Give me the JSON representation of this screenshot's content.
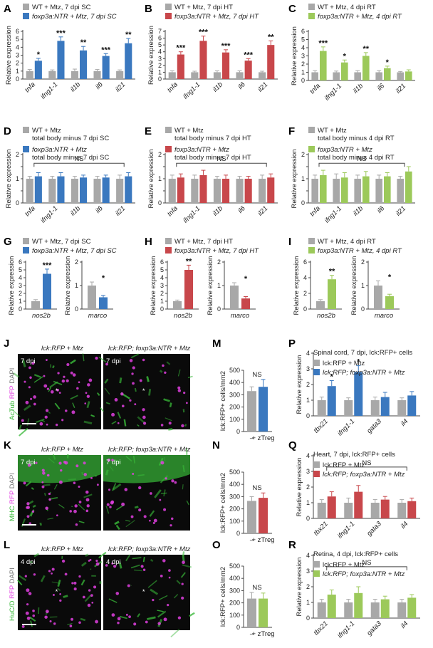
{
  "colors": {
    "gray": "#a8a8a8",
    "blue": "#3a78bf",
    "red": "#c8474b",
    "green": "#9cc95a",
    "magenta": "#e040e0",
    "stain": "#38b838"
  },
  "panel_letters": [
    "A",
    "B",
    "C",
    "D",
    "E",
    "F",
    "G",
    "H",
    "I",
    "J",
    "K",
    "L",
    "M",
    "N",
    "O",
    "P",
    "Q",
    "R"
  ],
  "micrographs": [
    {
      "id": "J",
      "left_label": "lck:RFP + Mtz",
      "right_label": "lck:RFP; foxp3a:NTR + Mtz",
      "dpi": "7 dpi",
      "stain": "AcTub",
      "rfp": "RFP",
      "dapi": "DAPI"
    },
    {
      "id": "K",
      "left_label": "lck:RFP + Mtz",
      "right_label": "lck:RFP; foxp3a:NTR + Mtz",
      "dpi": "7 dpi",
      "stain": "MHC",
      "rfp": "RFP",
      "dapi": "DAPI"
    },
    {
      "id": "L",
      "left_label": "lck:RFP + Mtz",
      "right_label": "lck:RFP; foxp3a:NTR + Mtz",
      "dpi": "4 dpi",
      "stain": "HuC/D",
      "rfp": "RFP",
      "dapi": "DAPI"
    }
  ],
  "chart_data": [
    {
      "panel": "A",
      "type": "bar",
      "ylabel": "Relative expression",
      "ylim": [
        0,
        6
      ],
      "yticks": [
        0,
        1,
        2,
        3,
        4,
        5,
        6
      ],
      "categories": [
        "tnfa",
        "ifng1-1",
        "il1b",
        "il6",
        "il21"
      ],
      "legend": [
        "WT + Mtz, 7 dpi SC",
        "foxp3a:NTR + Mtz, 7 dpi SC"
      ],
      "series": [
        {
          "name": "WT + Mtz, 7 dpi SC",
          "color": "gray",
          "values": [
            1,
            1,
            1,
            1,
            1
          ],
          "err": [
            0.2,
            0.15,
            0.25,
            0.2,
            0.15
          ]
        },
        {
          "name": "foxp3a:NTR + Mtz, 7 dpi SC",
          "color": "blue",
          "values": [
            2.3,
            4.8,
            3.6,
            2.9,
            4.5
          ],
          "err": [
            0.3,
            0.5,
            0.5,
            0.3,
            0.6
          ]
        }
      ],
      "significance": [
        "*",
        "***",
        "**",
        "***",
        "**"
      ]
    },
    {
      "panel": "B",
      "type": "bar",
      "ylabel": "Relative expression",
      "ylim": [
        0,
        7
      ],
      "yticks": [
        0,
        1,
        2,
        3,
        4,
        5,
        6,
        7
      ],
      "categories": [
        "tnfa",
        "ifng1-1",
        "il1b",
        "il6",
        "il21"
      ],
      "legend": [
        "WT + Mtz, 7 dpi HT",
        "foxp3a:NTR + Mtz, 7 dpi HT"
      ],
      "series": [
        {
          "name": "WT + Mtz, 7 dpi HT",
          "color": "gray",
          "values": [
            1,
            1,
            1,
            1,
            1
          ],
          "err": [
            0.2,
            0.15,
            0.2,
            0.2,
            0.15
          ]
        },
        {
          "name": "foxp3a:NTR + Mtz, 7 dpi HT",
          "color": "red",
          "values": [
            3.6,
            5.6,
            3.9,
            2.7,
            5.0
          ],
          "err": [
            0.4,
            0.7,
            0.4,
            0.3,
            0.6
          ]
        }
      ],
      "significance": [
        "***",
        "***",
        "***",
        "***",
        "**"
      ]
    },
    {
      "panel": "C",
      "type": "bar",
      "ylabel": "Relative expression",
      "ylim": [
        0,
        6
      ],
      "yticks": [
        0,
        1,
        2,
        3,
        4,
        5,
        6
      ],
      "categories": [
        "tnfa",
        "ifng1-1",
        "il1b",
        "il6",
        "il21"
      ],
      "legend": [
        "WT + Mtz, 4 dpi RT",
        "foxp3a:NTR + Mtz, 4 dpi RT"
      ],
      "series": [
        {
          "name": "WT + Mtz, 4 dpi RT",
          "color": "gray",
          "values": [
            1,
            1,
            1,
            1,
            1
          ],
          "err": [
            0.2,
            0.15,
            0.2,
            0.2,
            0.1
          ]
        },
        {
          "name": "foxp3a:NTR + Mtz, 4 dpi RT",
          "color": "green",
          "values": [
            3.6,
            2.2,
            3.0,
            1.5,
            1.1
          ],
          "err": [
            0.5,
            0.3,
            0.4,
            0.25,
            0.2
          ]
        }
      ],
      "significance": [
        "***",
        "*",
        "**",
        "*",
        ""
      ]
    },
    {
      "panel": "D",
      "type": "bar",
      "ylabel": "Relative expression",
      "ylim": [
        0,
        2
      ],
      "yticks": [
        0,
        0.5,
        1,
        1.5,
        2
      ],
      "ytick_labels": [
        "0",
        "",
        "1",
        "",
        "2"
      ],
      "categories": [
        "tnfa",
        "ifng1-1",
        "il1b",
        "il6",
        "il21"
      ],
      "legend": [
        "WT + Mtz",
        "total body minus 7 dpi SC",
        "foxp3a:NTR + Mtz",
        "total body minus 7 dpi SC"
      ],
      "series": [
        {
          "name": "WT + Mtz",
          "color": "gray",
          "values": [
            1,
            1,
            1,
            1,
            1
          ],
          "err": [
            0.1,
            0.1,
            0.1,
            0.1,
            0.15
          ]
        },
        {
          "name": "foxp3a:NTR + Mtz",
          "color": "blue",
          "values": [
            1.1,
            1.1,
            1.05,
            1.05,
            1.1
          ],
          "err": [
            0.15,
            0.15,
            0.1,
            0.1,
            0.15
          ]
        }
      ],
      "bracket": "NS"
    },
    {
      "panel": "E",
      "type": "bar",
      "ylabel": "Relative expression",
      "ylim": [
        0,
        2
      ],
      "yticks": [
        0,
        0.5,
        1,
        1.5,
        2
      ],
      "ytick_labels": [
        "0",
        "",
        "1",
        "",
        "2"
      ],
      "categories": [
        "tnfa",
        "ifng1-1",
        "il1b",
        "il6",
        "il21"
      ],
      "legend": [
        "WT + Mtz",
        "total body minus 7 dpi HT",
        "foxp3a:NTR + Mtz",
        "total body minus 7 dpi HT"
      ],
      "series": [
        {
          "name": "WT + Mtz",
          "color": "gray",
          "values": [
            1,
            1,
            1,
            1,
            1
          ],
          "err": [
            0.15,
            0.15,
            0.1,
            0.1,
            0.15
          ]
        },
        {
          "name": "foxp3a:NTR + Mtz",
          "color": "red",
          "values": [
            1.05,
            1.15,
            1.0,
            1.0,
            1.05
          ],
          "err": [
            0.15,
            0.2,
            0.15,
            0.1,
            0.15
          ]
        }
      ],
      "bracket": "NS"
    },
    {
      "panel": "F",
      "type": "bar",
      "ylabel": "Relative expression",
      "ylim": [
        0,
        2
      ],
      "yticks": [
        0,
        0.5,
        1,
        1.5,
        2
      ],
      "ytick_labels": [
        "0",
        "",
        "1",
        "",
        "2"
      ],
      "categories": [
        "tnfa",
        "ifng1-1",
        "il1b",
        "il6",
        "il21"
      ],
      "legend": [
        "WT + Mtz",
        "total body minus 4 dpi RT",
        "foxp3a:NTR + Mtz",
        "total body minus 4 dpi RT"
      ],
      "series": [
        {
          "name": "WT + Mtz",
          "color": "gray",
          "values": [
            1,
            1,
            1,
            1,
            1
          ],
          "err": [
            0.15,
            0.2,
            0.15,
            0.15,
            0.1
          ]
        },
        {
          "name": "foxp3a:NTR + Mtz",
          "color": "green",
          "values": [
            1.15,
            1.05,
            1.1,
            1.1,
            1.3
          ],
          "err": [
            0.2,
            0.2,
            0.2,
            0.15,
            0.2
          ]
        }
      ],
      "bracket": "NS"
    },
    {
      "panel": "G",
      "type": "bar",
      "ylabel": "Relative expression",
      "ylim": [
        0,
        6
      ],
      "yticks": [
        0,
        1,
        2,
        3,
        4,
        5,
        6
      ],
      "categories": [
        "nos2b"
      ],
      "legend": [
        "WT + Mtz, 7 dpi SC",
        "foxp3a:NTR + Mtz, 7 dpi SC"
      ],
      "series": [
        {
          "name": "WT + Mtz, 7 dpi SC",
          "color": "gray",
          "values": [
            1
          ],
          "err": [
            0.2
          ]
        },
        {
          "name": "foxp3a:NTR + Mtz, 7 dpi SC",
          "color": "blue",
          "values": [
            4.5
          ],
          "err": [
            0.6
          ]
        }
      ],
      "significance": [
        "***"
      ]
    },
    {
      "panel": "G2",
      "type": "bar",
      "ylabel": "Relative expression",
      "ylim": [
        0,
        2
      ],
      "yticks": [
        0,
        1,
        2
      ],
      "categories": [
        "marco"
      ],
      "series": [
        {
          "name": "WT + Mtz, 7 dpi SC",
          "color": "gray",
          "values": [
            1.0
          ],
          "err": [
            0.15
          ]
        },
        {
          "name": "foxp3a:NTR + Mtz, 7 dpi SC",
          "color": "blue",
          "values": [
            0.5
          ],
          "err": [
            0.08
          ]
        }
      ],
      "significance": [
        "*"
      ]
    },
    {
      "panel": "H",
      "type": "bar",
      "ylabel": "Relative expression",
      "ylim": [
        0,
        6
      ],
      "yticks": [
        0,
        1,
        2,
        3,
        4,
        5,
        6
      ],
      "categories": [
        "nos2b"
      ],
      "legend": [
        "WT + Mtz, 7 dpi HT",
        "foxp3a:NTR + Mtz, 7 dpi HT"
      ],
      "series": [
        {
          "name": "WT + Mtz, 7 dpi HT",
          "color": "gray",
          "values": [
            1
          ],
          "err": [
            0.15
          ]
        },
        {
          "name": "foxp3a:NTR + Mtz, 7 dpi HT",
          "color": "red",
          "values": [
            5.0
          ],
          "err": [
            0.6
          ]
        }
      ],
      "significance": [
        "**"
      ]
    },
    {
      "panel": "H2",
      "type": "bar",
      "ylabel": "Relative expression",
      "ylim": [
        0,
        2
      ],
      "yticks": [
        0,
        1,
        2
      ],
      "categories": [
        "marco"
      ],
      "series": [
        {
          "name": "WT + Mtz, 7 dpi HT",
          "color": "gray",
          "values": [
            1.0
          ],
          "err": [
            0.12
          ]
        },
        {
          "name": "foxp3a:NTR + Mtz, 7 dpi HT",
          "color": "red",
          "values": [
            0.45
          ],
          "err": [
            0.08
          ]
        }
      ],
      "significance": [
        "*"
      ]
    },
    {
      "panel": "I",
      "type": "bar",
      "ylabel": "Relative expression",
      "ylim": [
        0,
        6
      ],
      "yticks": [
        0,
        2,
        4,
        6
      ],
      "categories": [
        "nos2b"
      ],
      "legend": [
        "WT + Mtz, 4 dpi RT",
        "foxp3a:NTR + Mtz, 4 dpi RT"
      ],
      "series": [
        {
          "name": "WT + Mtz, 4 dpi RT",
          "color": "gray",
          "values": [
            1
          ],
          "err": [
            0.2
          ]
        },
        {
          "name": "foxp3a:NTR + Mtz, 4 dpi RT",
          "color": "green",
          "values": [
            3.8
          ],
          "err": [
            0.5
          ]
        }
      ],
      "significance": [
        "**"
      ]
    },
    {
      "panel": "I2",
      "type": "bar",
      "ylabel": "Relative expression",
      "ylim": [
        0,
        2
      ],
      "yticks": [
        0,
        1,
        2
      ],
      "categories": [
        "marco"
      ],
      "series": [
        {
          "name": "WT + Mtz, 4 dpi RT",
          "color": "gray",
          "values": [
            1.0
          ],
          "err": [
            0.2
          ]
        },
        {
          "name": "foxp3a:NTR + Mtz, 4 dpi RT",
          "color": "green",
          "values": [
            0.55
          ],
          "err": [
            0.08
          ]
        }
      ],
      "significance": [
        "*"
      ]
    },
    {
      "panel": "M",
      "type": "bar",
      "ylabel": "lck:RFP+ cells/mm2",
      "ylim": [
        0,
        500
      ],
      "yticks": [
        0,
        100,
        200,
        300,
        400,
        500
      ],
      "categories": [
        "–",
        "+ zTreg"
      ],
      "values": [
        330,
        365
      ],
      "err": [
        35,
        60
      ],
      "colors": [
        "gray",
        "blue"
      ],
      "bracket": "NS"
    },
    {
      "panel": "N",
      "type": "bar",
      "ylabel": "lck:RFP+ cells/mm2",
      "ylim": [
        0,
        500
      ],
      "yticks": [
        0,
        100,
        200,
        300,
        400,
        500
      ],
      "categories": [
        "–",
        "+ zTreg"
      ],
      "values": [
        265,
        290
      ],
      "err": [
        35,
        40
      ],
      "colors": [
        "gray",
        "red"
      ],
      "bracket": "NS"
    },
    {
      "panel": "O",
      "type": "bar",
      "ylabel": "lck:RFP+ cells/mm2",
      "ylim": [
        0,
        500
      ],
      "yticks": [
        0,
        100,
        200,
        300,
        400,
        500
      ],
      "categories": [
        "–",
        "+ zTreg"
      ],
      "values": [
        235,
        235
      ],
      "err": [
        50,
        45
      ],
      "colors": [
        "gray",
        "green"
      ],
      "bracket": "NS"
    },
    {
      "panel": "P",
      "type": "bar",
      "title": "Spinal cord, 7 dpi, lck:RFP+ cells",
      "ylabel": "Relative expression",
      "ylim": [
        0,
        4
      ],
      "yticks": [
        0,
        1,
        2,
        3,
        4
      ],
      "categories": [
        "tbx21",
        "ifng1-1",
        "gata3",
        "il4"
      ],
      "legend": [
        "lck:RFP + Mtz",
        "lck:RFP; foxp3a:NTR + Mtz"
      ],
      "series": [
        {
          "name": "lck:RFP + Mtz",
          "color": "gray",
          "values": [
            1,
            1,
            1,
            1
          ],
          "err": [
            0.2,
            0.15,
            0.2,
            0.15
          ]
        },
        {
          "name": "lck:RFP; foxp3a:NTR + Mtz",
          "color": "blue",
          "values": [
            1.9,
            2.8,
            1.2,
            1.3
          ],
          "err": [
            0.35,
            0.4,
            0.3,
            0.25
          ]
        }
      ],
      "significance": [
        "*",
        "*",
        "",
        ""
      ]
    },
    {
      "panel": "Q",
      "type": "bar",
      "title": "Heart, 7 dpi, lck:RFP+ cells",
      "ylabel": "Relative expression",
      "ylim": [
        0,
        4
      ],
      "yticks": [
        0,
        1,
        2,
        3,
        4
      ],
      "categories": [
        "tbx21",
        "ifng1-1",
        "gata3",
        "il4"
      ],
      "legend": [
        "lck:RFP + Mtz",
        "lck:RFP; foxp3a:NTR + Mtz"
      ],
      "series": [
        {
          "name": "lck:RFP + Mtz",
          "color": "gray",
          "values": [
            1,
            1,
            1,
            1
          ],
          "err": [
            0.2,
            0.3,
            0.2,
            0.2
          ]
        },
        {
          "name": "lck:RFP; foxp3a:NTR + Mtz",
          "color": "red",
          "values": [
            1.4,
            1.7,
            1.2,
            1.1
          ],
          "err": [
            0.3,
            0.4,
            0.2,
            0.2
          ]
        }
      ],
      "bracket": "NS"
    },
    {
      "panel": "R",
      "type": "bar",
      "title": "Retina, 4 dpi, lck:RFP+ cells",
      "ylabel": "Relative expression",
      "ylim": [
        0,
        4
      ],
      "yticks": [
        0,
        1,
        2,
        3,
        4
      ],
      "categories": [
        "tbx21",
        "ifng1-1",
        "gata3",
        "il4"
      ],
      "legend": [
        "lck:RFP + Mtz",
        "lck:RFP; foxp3a:NTR + Mtz"
      ],
      "series": [
        {
          "name": "lck:RFP + Mtz",
          "color": "gray",
          "values": [
            1,
            1,
            1,
            1
          ],
          "err": [
            0.2,
            0.2,
            0.2,
            0.2
          ]
        },
        {
          "name": "lck:RFP; foxp3a:NTR + Mtz",
          "color": "green",
          "values": [
            1.5,
            1.6,
            1.2,
            1.3
          ],
          "err": [
            0.3,
            0.4,
            0.2,
            0.2
          ]
        }
      ],
      "bracket": "NS"
    }
  ]
}
